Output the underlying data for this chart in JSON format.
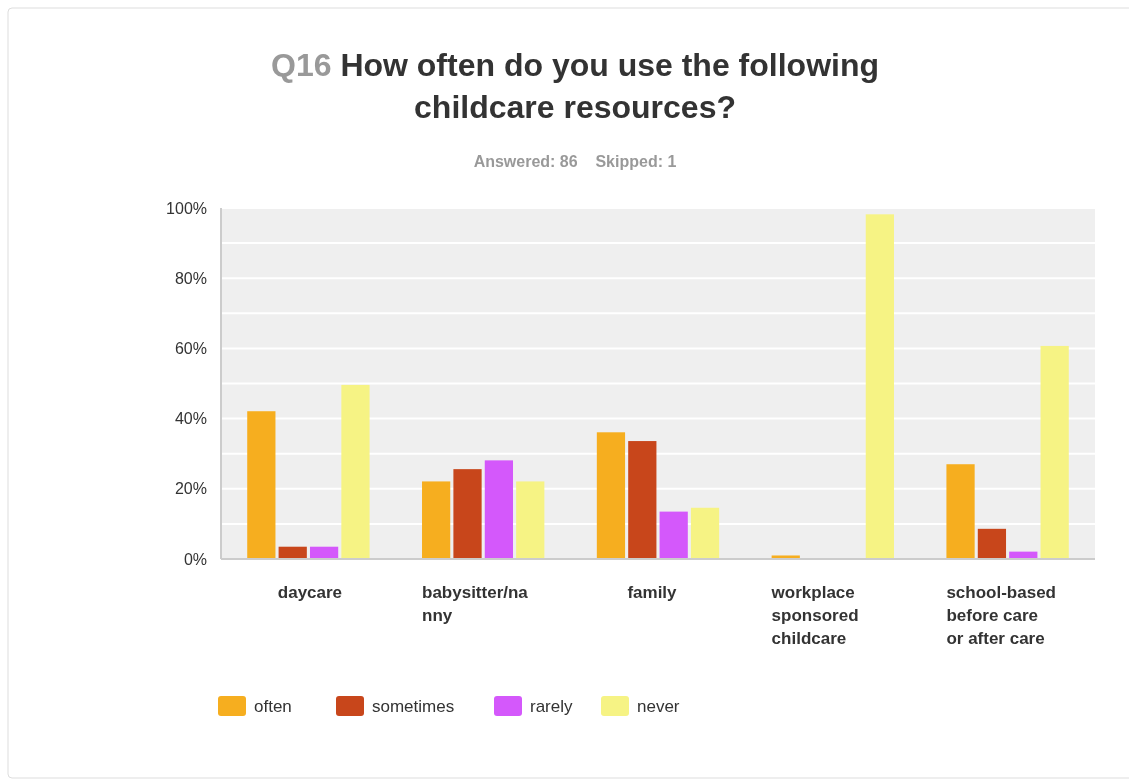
{
  "chart_data": {
    "type": "bar",
    "title": "Q16 How often do you use the following childcare resources?",
    "subtitle": "Answered: 86    Skipped: 1",
    "categories": [
      "daycare",
      "babysitter/nanny",
      "family",
      "workplace sponsored childcare",
      "school-based before care or after care"
    ],
    "series": [
      {
        "name": "often",
        "color": "#f6ae1f",
        "values": [
          42.1,
          22.1,
          36.1,
          1.0,
          27.0
        ]
      },
      {
        "name": "sometimes",
        "color": "#c8461b",
        "values": [
          3.5,
          25.6,
          33.6,
          0,
          8.6
        ]
      },
      {
        "name": "rarely",
        "color": "#d458fb",
        "values": [
          3.5,
          28.1,
          13.5,
          0,
          2.1
        ]
      },
      {
        "name": "never",
        "color": "#f6f384",
        "values": [
          49.6,
          22.1,
          14.6,
          98.2,
          60.7
        ]
      }
    ],
    "ylim": [
      0,
      100
    ],
    "yticks": [
      {
        "value": 0,
        "label": "0%"
      },
      {
        "value": 10,
        "label": null
      },
      {
        "value": 20,
        "label": "20%"
      },
      {
        "value": 30,
        "label": null
      },
      {
        "value": 40,
        "label": "40%"
      },
      {
        "value": 50,
        "label": null
      },
      {
        "value": 60,
        "label": "60%"
      },
      {
        "value": 70,
        "label": null
      },
      {
        "value": 80,
        "label": "80%"
      },
      {
        "value": 90,
        "label": null
      },
      {
        "value": 100,
        "label": "100%"
      }
    ],
    "grid": "y",
    "legend": "bottom left"
  }
}
